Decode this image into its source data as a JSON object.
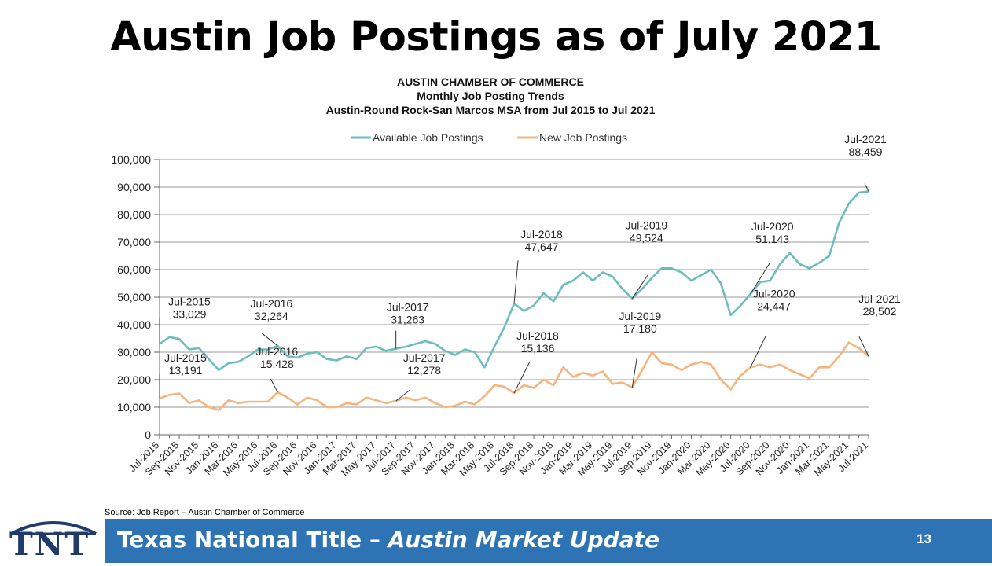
{
  "slide": {
    "title": "Austin Job Postings as of July 2021",
    "source": "Source: Job Report – Austin Chamber of Commerce",
    "footer_title": "Texas National Title – ",
    "footer_subtitle": "Austin Market Update",
    "page_number": "13",
    "logo_text": "TNT"
  },
  "colors": {
    "available": "#6dbdbd",
    "new": "#f5b47c",
    "footer": "#2e74b5",
    "logo": "#1f3a6b"
  },
  "chart_data": {
    "type": "line",
    "title_lines": [
      "AUSTIN CHAMBER OF COMMERCE",
      "Monthly Job Posting Trends",
      "Austin-Round Rock-San Marcos MSA from Jul 2015 to Jul 2021"
    ],
    "legend_position": "top",
    "grid": true,
    "ylim": [
      0,
      100000
    ],
    "yticks": [
      "0",
      "10,000",
      "20,000",
      "30,000",
      "40,000",
      "50,000",
      "60,000",
      "70,000",
      "80,000",
      "90,000",
      "100,000"
    ],
    "x_tick_labels": [
      "Jul-2015",
      "Sep-2015",
      "Nov-2015",
      "Jan-2016",
      "Mar-2016",
      "May-2016",
      "Jul-2016",
      "Sep-2016",
      "Nov-2016",
      "Jan-2017",
      "Mar-2017",
      "May-2017",
      "Jul-2017",
      "Sep-2017",
      "Nov-2017",
      "Jan-2018",
      "Mar-2018",
      "May-2018",
      "Jul-2018",
      "Sep-2018",
      "Nov-2018",
      "Jan-2019",
      "Mar-2019",
      "May-2019",
      "Jul-2019",
      "Sep-2019",
      "Nov-2019",
      "Jan-2020",
      "Mar-2020",
      "May-2020",
      "Jul-2020",
      "Sep-2020",
      "Nov-2020",
      "Jan-2021",
      "Mar-2021",
      "May-2021",
      "Jul-2021"
    ],
    "series": [
      {
        "name": "Available Job Postings",
        "values": [
          33029,
          35500,
          34800,
          31000,
          31500,
          27500,
          23500,
          26000,
          26500,
          28500,
          31000,
          31000,
          32264,
          28500,
          28000,
          29500,
          30000,
          27500,
          27000,
          28500,
          27500,
          31500,
          32000,
          30500,
          31263,
          32000,
          33000,
          34000,
          33000,
          30500,
          29000,
          31000,
          30000,
          24500,
          32000,
          39000,
          47647,
          45000,
          47000,
          51500,
          48500,
          54500,
          56000,
          59000,
          56000,
          59000,
          57500,
          53000,
          49524,
          53000,
          57000,
          60500,
          60500,
          59000,
          56000,
          58000,
          60000,
          55000,
          43500,
          47000,
          51143,
          55500,
          56000,
          62000,
          66000,
          62000,
          60500,
          62500,
          65000,
          77000,
          84000,
          88000,
          88459
        ],
        "annotations": [
          {
            "label": "Jul-2015",
            "value": "33,029"
          },
          {
            "label": "Jul-2016",
            "value": "32,264"
          },
          {
            "label": "Jul-2017",
            "value": "31,263"
          },
          {
            "label": "Jul-2018",
            "value": "47,647"
          },
          {
            "label": "Jul-2019",
            "value": "49,524"
          },
          {
            "label": "Jul-2020",
            "value": "51,143"
          },
          {
            "label": "Jul-2021",
            "value": "88,459"
          }
        ]
      },
      {
        "name": "New Job Postings",
        "values": [
          13191,
          14500,
          15000,
          11500,
          12500,
          10000,
          9000,
          12500,
          11500,
          12000,
          12000,
          12000,
          15428,
          13500,
          11000,
          13500,
          12500,
          10000,
          10000,
          11500,
          11000,
          13500,
          12500,
          11500,
          12278,
          13500,
          12500,
          13500,
          11500,
          10000,
          10500,
          12000,
          11000,
          14000,
          18000,
          17500,
          15136,
          18000,
          17000,
          20000,
          18000,
          24500,
          21000,
          22500,
          21500,
          23000,
          18500,
          19000,
          17180,
          23500,
          30000,
          26000,
          25500,
          23500,
          25500,
          26500,
          25500,
          20000,
          16500,
          21500,
          24447,
          25500,
          24500,
          25500,
          23500,
          22000,
          20500,
          24500,
          24500,
          28500,
          33500,
          31500,
          28502
        ],
        "annotations": [
          {
            "label": "Jul-2015",
            "value": "13,191"
          },
          {
            "label": "Jul-2016",
            "value": "15,428"
          },
          {
            "label": "Jul-2017",
            "value": "12,278"
          },
          {
            "label": "Jul-2018",
            "value": "15,136"
          },
          {
            "label": "Jul-2019",
            "value": "17,180"
          },
          {
            "label": "Jul-2020",
            "value": "24,447"
          },
          {
            "label": "Jul-2021",
            "value": "28,502"
          }
        ]
      }
    ]
  }
}
